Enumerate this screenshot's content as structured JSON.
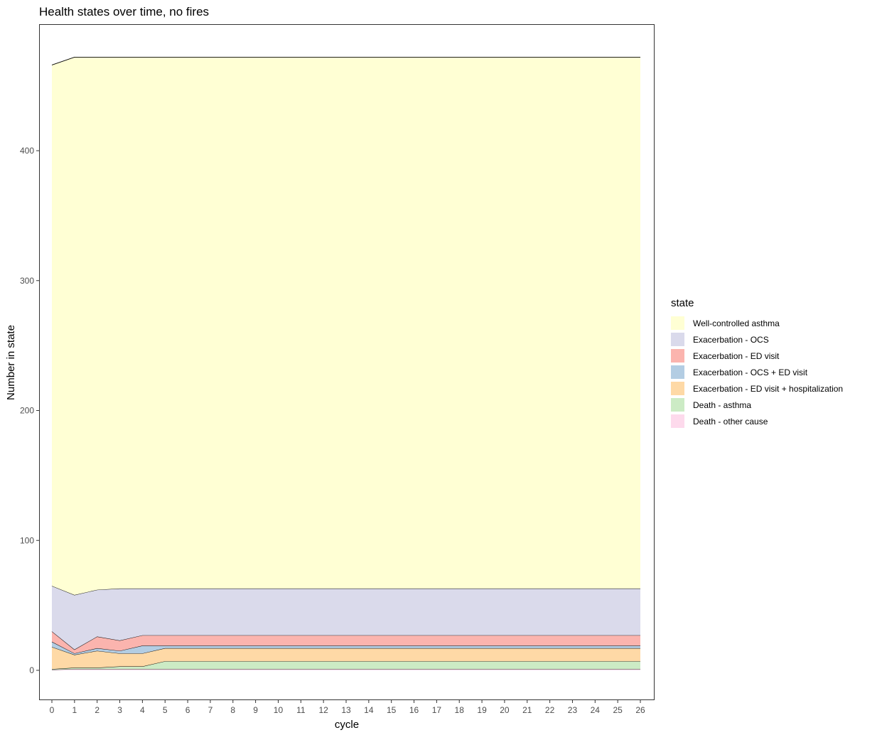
{
  "chart_data": {
    "type": "area",
    "title": "Health states over time, no fires",
    "xlabel": "cycle",
    "ylabel": "Number in state",
    "xlim": [
      0,
      26
    ],
    "ylim": [
      0,
      472
    ],
    "yticks": [
      0,
      100,
      200,
      300,
      400
    ],
    "x": [
      0,
      1,
      2,
      3,
      4,
      5,
      6,
      7,
      8,
      9,
      10,
      11,
      12,
      13,
      14,
      15,
      16,
      17,
      18,
      19,
      20,
      21,
      22,
      23,
      24,
      25,
      26
    ],
    "stacked": true,
    "legend": {
      "title": "state",
      "position": "right"
    },
    "series": [
      {
        "name": "Death - other cause",
        "color": "#FDDAEC",
        "values": [
          0.5,
          1,
          1,
          1,
          1,
          1,
          1,
          1,
          1,
          1,
          1,
          1,
          1,
          1,
          1,
          1,
          1,
          1,
          1,
          1,
          1,
          1,
          1,
          1,
          1,
          1,
          1
        ]
      },
      {
        "name": "Death - asthma",
        "color": "#CCEBC5",
        "values": [
          0.5,
          1,
          1,
          2,
          2,
          6,
          6,
          6,
          6,
          6,
          6,
          6,
          6,
          6,
          6,
          6,
          6,
          6,
          6,
          6,
          6,
          6,
          6,
          6,
          6,
          6,
          6
        ]
      },
      {
        "name": "Exacerbation - ED visit + hospitalization",
        "color": "#FED9A6",
        "values": [
          17,
          10,
          13,
          10,
          10,
          10,
          10,
          10,
          10,
          10,
          10,
          10,
          10,
          10,
          10,
          10,
          10,
          10,
          10,
          10,
          10,
          10,
          10,
          10,
          10,
          10,
          10
        ]
      },
      {
        "name": "Exacerbation - OCS + ED visit",
        "color": "#B3CDE3",
        "values": [
          4,
          1,
          2,
          2,
          6,
          2,
          2,
          2,
          2,
          2,
          2,
          2,
          2,
          2,
          2,
          2,
          2,
          2,
          2,
          2,
          2,
          2,
          2,
          2,
          2,
          2,
          2
        ]
      },
      {
        "name": "Exacerbation - ED visit",
        "color": "#FBB4AE",
        "values": [
          8,
          3,
          9,
          8,
          8,
          8,
          8,
          8,
          8,
          8,
          8,
          8,
          8,
          8,
          8,
          8,
          8,
          8,
          8,
          8,
          8,
          8,
          8,
          8,
          8,
          8,
          8
        ]
      },
      {
        "name": "Exacerbation - OCS",
        "color": "#DADAEB",
        "values": [
          35,
          42,
          36,
          40,
          36,
          36,
          36,
          36,
          36,
          36,
          36,
          36,
          36,
          36,
          36,
          36,
          36,
          36,
          36,
          36,
          36,
          36,
          36,
          36,
          36,
          36,
          36
        ]
      },
      {
        "name": "Well-controlled asthma",
        "color": "#FFFFD4",
        "values": [
          401,
          414,
          410,
          409,
          409,
          409,
          409,
          409,
          409,
          409,
          409,
          409,
          409,
          409,
          409,
          409,
          409,
          409,
          409,
          409,
          409,
          409,
          409,
          409,
          409,
          409,
          409
        ]
      }
    ]
  }
}
